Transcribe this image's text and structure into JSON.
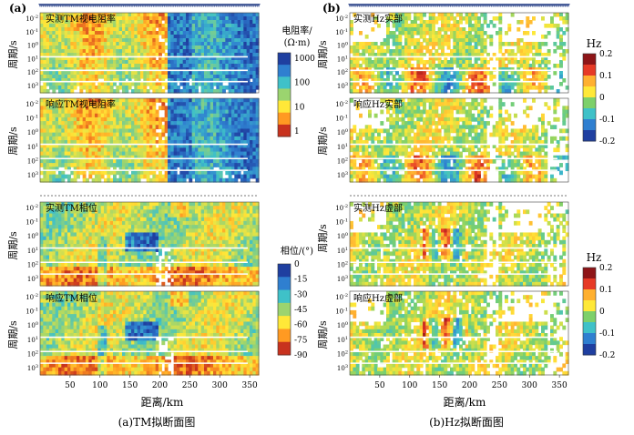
{
  "panels": {
    "a": {
      "letter": "(a)",
      "caption": "(a)TM拟断面图",
      "xlabel": "距离/km",
      "xticks": [
        "50",
        "100",
        "150",
        "200",
        "250",
        "300",
        "350"
      ],
      "plots": [
        {
          "title": "实测TM视电阻率",
          "ylabel": "周期/s",
          "kind": "res"
        },
        {
          "title": "响应TM视电阻率",
          "ylabel": "周期/s",
          "kind": "res"
        },
        {
          "title": "实测TM相位",
          "ylabel": "周期/s",
          "kind": "phase"
        },
        {
          "title": "响应TM相位",
          "ylabel": "周期/s",
          "kind": "phase"
        }
      ],
      "colorbars": [
        {
          "title": "电阻率/",
          "title2": "(Ω·m)",
          "ticks": [
            "1000",
            "100",
            "10",
            "1"
          ],
          "colors": [
            "#c8321e",
            "#ff9a22",
            "#ffe838",
            "#9bd46f",
            "#3fc1c8",
            "#2f7fd0",
            "#1f3fa0"
          ]
        },
        {
          "title": "相位/(°)",
          "ticks": [
            "0",
            "-15",
            "-30",
            "-45",
            "-60",
            "-75",
            "-90"
          ],
          "colors": [
            "#1f3fa0",
            "#2f7fd0",
            "#3fc1c8",
            "#9bd46f",
            "#ffe838",
            "#ff9a22",
            "#c8321e"
          ]
        }
      ]
    },
    "b": {
      "letter": "(b)",
      "caption": "(b)Hz拟断面图",
      "xlabel": "距离/km",
      "xticks": [
        "50",
        "100",
        "150",
        "200",
        "250",
        "300",
        "350"
      ],
      "plots": [
        {
          "title": "实测Hz实部",
          "ylabel": "周期/s",
          "kind": "hz"
        },
        {
          "title": "响应Hz实部",
          "ylabel": "周期/s",
          "kind": "hz"
        },
        {
          "title": "实测Hz虚部",
          "ylabel": "周期/s",
          "kind": "hz"
        },
        {
          "title": "响应Hz虚部",
          "ylabel": "周期/s",
          "kind": "hz"
        }
      ],
      "colorbars": [
        {
          "title": "Hz",
          "ticks": [
            "0.2",
            "0.1",
            "0",
            "-0.1",
            "-0.2"
          ],
          "colors": [
            "#8e1518",
            "#e63a26",
            "#ffb030",
            "#ffe838",
            "#7dd06a",
            "#3fc1c8",
            "#2f7fd0",
            "#1f3fa0"
          ]
        },
        {
          "title": "Hz",
          "ticks": [
            "0.2",
            "0.1",
            "0",
            "-0.1",
            "-0.2"
          ],
          "colors": [
            "#8e1518",
            "#e63a26",
            "#ffb030",
            "#ffe838",
            "#7dd06a",
            "#3fc1c8",
            "#2f7fd0",
            "#1f3fa0"
          ]
        }
      ]
    }
  },
  "chart_data": [
    {
      "type": "heatmap",
      "title": "实测TM视电阻率",
      "xlabel": "距离/km",
      "ylabel": "周期/s",
      "xlim": [
        0,
        365
      ],
      "y_ticks": [
        "10^-2",
        "10^-1",
        "10^0",
        "10^1",
        "10^2",
        "10^3"
      ],
      "color_scale": "log",
      "clim": [
        1,
        1000
      ],
      "colorbar_label": "电阻率/(Ω·m)"
    },
    {
      "type": "heatmap",
      "title": "响应TM视电阻率",
      "xlabel": "距离/km",
      "ylabel": "周期/s",
      "xlim": [
        0,
        365
      ],
      "y_ticks": [
        "10^-2",
        "10^-1",
        "10^0",
        "10^1",
        "10^2",
        "10^3"
      ],
      "color_scale": "log",
      "clim": [
        1,
        1000
      ],
      "colorbar_label": "电阻率/(Ω·m)"
    },
    {
      "type": "heatmap",
      "title": "实测TM相位",
      "xlabel": "距离/km",
      "ylabel": "周期/s",
      "xlim": [
        0,
        365
      ],
      "y_ticks": [
        "10^-2",
        "10^-1",
        "10^0",
        "10^1",
        "10^2",
        "10^3"
      ],
      "clim": [
        -90,
        0
      ],
      "colorbar_label": "相位/(°)"
    },
    {
      "type": "heatmap",
      "title": "响应TM相位",
      "xlabel": "距离/km",
      "ylabel": "周期/s",
      "xlim": [
        0,
        365
      ],
      "y_ticks": [
        "10^-2",
        "10^-1",
        "10^0",
        "10^1",
        "10^2",
        "10^3"
      ],
      "clim": [
        -90,
        0
      ],
      "colorbar_label": "相位/(°)"
    },
    {
      "type": "heatmap",
      "title": "实测Hz实部",
      "xlabel": "距离/km",
      "ylabel": "周期/s",
      "xlim": [
        0,
        365
      ],
      "y_ticks": [
        "10^-2",
        "10^-1",
        "10^0",
        "10^1",
        "10^2",
        "10^3"
      ],
      "clim": [
        -0.2,
        0.2
      ],
      "colorbar_label": "Hz"
    },
    {
      "type": "heatmap",
      "title": "响应Hz实部",
      "xlabel": "距离/km",
      "ylabel": "周期/s",
      "xlim": [
        0,
        365
      ],
      "y_ticks": [
        "10^-2",
        "10^-1",
        "10^0",
        "10^1",
        "10^2",
        "10^3"
      ],
      "clim": [
        -0.2,
        0.2
      ],
      "colorbar_label": "Hz"
    },
    {
      "type": "heatmap",
      "title": "实测Hz虚部",
      "xlabel": "距离/km",
      "ylabel": "周期/s",
      "xlim": [
        0,
        365
      ],
      "y_ticks": [
        "10^-2",
        "10^-1",
        "10^0",
        "10^1",
        "10^2",
        "10^3"
      ],
      "clim": [
        -0.2,
        0.2
      ],
      "colorbar_label": "Hz"
    },
    {
      "type": "heatmap",
      "title": "响应Hz虚部",
      "xlabel": "距离/km",
      "ylabel": "周期/s",
      "xlim": [
        0,
        365
      ],
      "y_ticks": [
        "10^-2",
        "10^-1",
        "10^0",
        "10^1",
        "10^2",
        "10^3"
      ],
      "clim": [
        -0.2,
        0.2
      ],
      "colorbar_label": "Hz"
    }
  ]
}
